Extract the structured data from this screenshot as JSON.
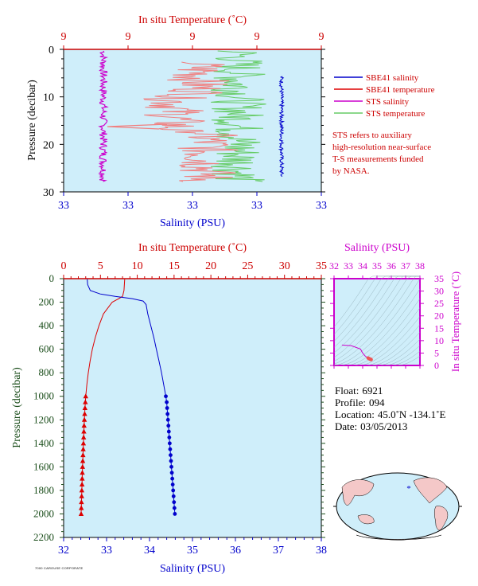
{
  "colors": {
    "background": "#cfeefa",
    "salinity_axis": "#0000cc",
    "temperature_axis": "#cc0000",
    "pressure_axis": "#1a4d1a",
    "sbe41_salinity": "#0000cc",
    "sbe41_temperature": "#dd0000",
    "sts_salinity": "#cc00cc",
    "sts_temperature": "#66cc66",
    "sts_temperature_pink": "#f08080",
    "ts_axis": "#cc00cc"
  },
  "chart_data": [
    {
      "type": "line",
      "panel": "near-surface",
      "top_axis_label": "In situ Temperature (˚C)",
      "top_ticks": [
        "9",
        "9",
        "9",
        "9",
        "9"
      ],
      "bottom_axis_label": "Salinity (PSU)",
      "bottom_ticks": [
        "33",
        "33",
        "33",
        "33",
        "33"
      ],
      "ylabel": "Pressure (decibar)",
      "y_ticks": [
        "0",
        "10",
        "20",
        "30"
      ],
      "ylim": [
        0,
        30
      ],
      "legend_placement": "right",
      "legend": [
        {
          "name": "SBE41 salinity",
          "color": "#0000cc"
        },
        {
          "name": "SBE41 temperature",
          "color": "#dd0000"
        },
        {
          "name": "STS salinity",
          "color": "#cc00cc"
        },
        {
          "name": "STS temperature",
          "color": "#66cc66"
        }
      ],
      "note": [
        "STS refers to auxiliary",
        "high-resolution near-surface",
        "T-S measurements funded",
        "by NASA."
      ]
    },
    {
      "type": "line",
      "panel": "full-profile",
      "top_axis_label": "In situ Temperature (˚C)",
      "top_ticks": [
        "0",
        "5",
        "10",
        "15",
        "20",
        "25",
        "30",
        "35"
      ],
      "xlim_temperature": [
        0,
        35
      ],
      "bottom_axis_label": "Salinity (PSU)",
      "bottom_ticks": [
        "32",
        "33",
        "34",
        "35",
        "36",
        "37",
        "38"
      ],
      "xlim_salinity": [
        32,
        38
      ],
      "ylabel": "Pressure (decibar)",
      "y_ticks": [
        "0",
        "200",
        "400",
        "600",
        "800",
        "1000",
        "1200",
        "1400",
        "1600",
        "1800",
        "2000",
        "2200"
      ],
      "ylim": [
        0,
        2200
      ],
      "series": [
        {
          "name": "SBE41 temperature",
          "color": "#dd0000",
          "marker": "triangle",
          "pressure": [
            5,
            100,
            150,
            170,
            200,
            250,
            300,
            400,
            500,
            600,
            700,
            800,
            900,
            1000,
            1050,
            1100,
            1150,
            1200,
            1250,
            1300,
            1350,
            1400,
            1450,
            1500,
            1550,
            1600,
            1650,
            1700,
            1750,
            1800,
            1850,
            1900,
            1950,
            2000
          ],
          "values": [
            8.3,
            8.2,
            8.0,
            7.5,
            6.6,
            6.0,
            5.4,
            4.8,
            4.3,
            3.9,
            3.6,
            3.35,
            3.15,
            3.0,
            2.95,
            2.9,
            2.86,
            2.82,
            2.78,
            2.75,
            2.72,
            2.69,
            2.66,
            2.63,
            2.6,
            2.57,
            2.54,
            2.52,
            2.5,
            2.47,
            2.45,
            2.42,
            2.4,
            2.38
          ]
        },
        {
          "name": "SBE41 salinity",
          "color": "#0000cc",
          "marker": "circle",
          "pressure": [
            5,
            50,
            100,
            130,
            150,
            170,
            190,
            220,
            300,
            400,
            500,
            600,
            700,
            800,
            900,
            1000,
            1050,
            1100,
            1150,
            1200,
            1250,
            1300,
            1350,
            1400,
            1450,
            1500,
            1550,
            1600,
            1650,
            1700,
            1750,
            1800,
            1850,
            1900,
            1950,
            2000
          ],
          "values": [
            32.55,
            32.56,
            32.62,
            32.85,
            33.2,
            33.6,
            33.85,
            33.92,
            33.96,
            34.03,
            34.1,
            34.16,
            34.22,
            34.28,
            34.33,
            34.38,
            34.4,
            34.41,
            34.42,
            34.43,
            34.44,
            34.45,
            34.46,
            34.47,
            34.48,
            34.49,
            34.5,
            34.51,
            34.52,
            34.53,
            34.54,
            34.55,
            34.56,
            34.57,
            34.58,
            34.59
          ]
        }
      ]
    },
    {
      "type": "scatter",
      "panel": "T-S diagram",
      "xlabel": "Salinity (PSU)",
      "x_ticks": [
        "32",
        "33",
        "34",
        "35",
        "36",
        "37",
        "38"
      ],
      "xlim": [
        32,
        38
      ],
      "ylabel": "In situ Temperature (˚C)",
      "y_ticks": [
        "0",
        "5",
        "10",
        "15",
        "20",
        "25",
        "30",
        "35"
      ],
      "ylim": [
        0,
        35
      ],
      "series": [
        {
          "name": "profile",
          "color": "#cc00cc",
          "salinity": [
            32.55,
            32.62,
            33.2,
            33.85,
            33.96,
            34.03,
            34.16,
            34.28,
            34.38,
            34.45,
            34.5,
            34.55,
            34.59
          ],
          "temperature": [
            8.3,
            8.2,
            8.0,
            6.6,
            5.4,
            4.8,
            3.9,
            3.35,
            3.0,
            2.75,
            2.6,
            2.47,
            2.38
          ]
        }
      ]
    }
  ],
  "info": {
    "float_label": "Float:",
    "float_value": "6921",
    "profile_label": "Profile:",
    "profile_value": "094",
    "location_label": "Location:",
    "location_value": "45.0˚N  -134.1˚E",
    "date_label": "Date:",
    "date_value": "03/05/2013"
  },
  "footer_tiny": "7000 CAROUSE CORPORATE",
  "map": {
    "float_marker_color": "#0000cc"
  }
}
